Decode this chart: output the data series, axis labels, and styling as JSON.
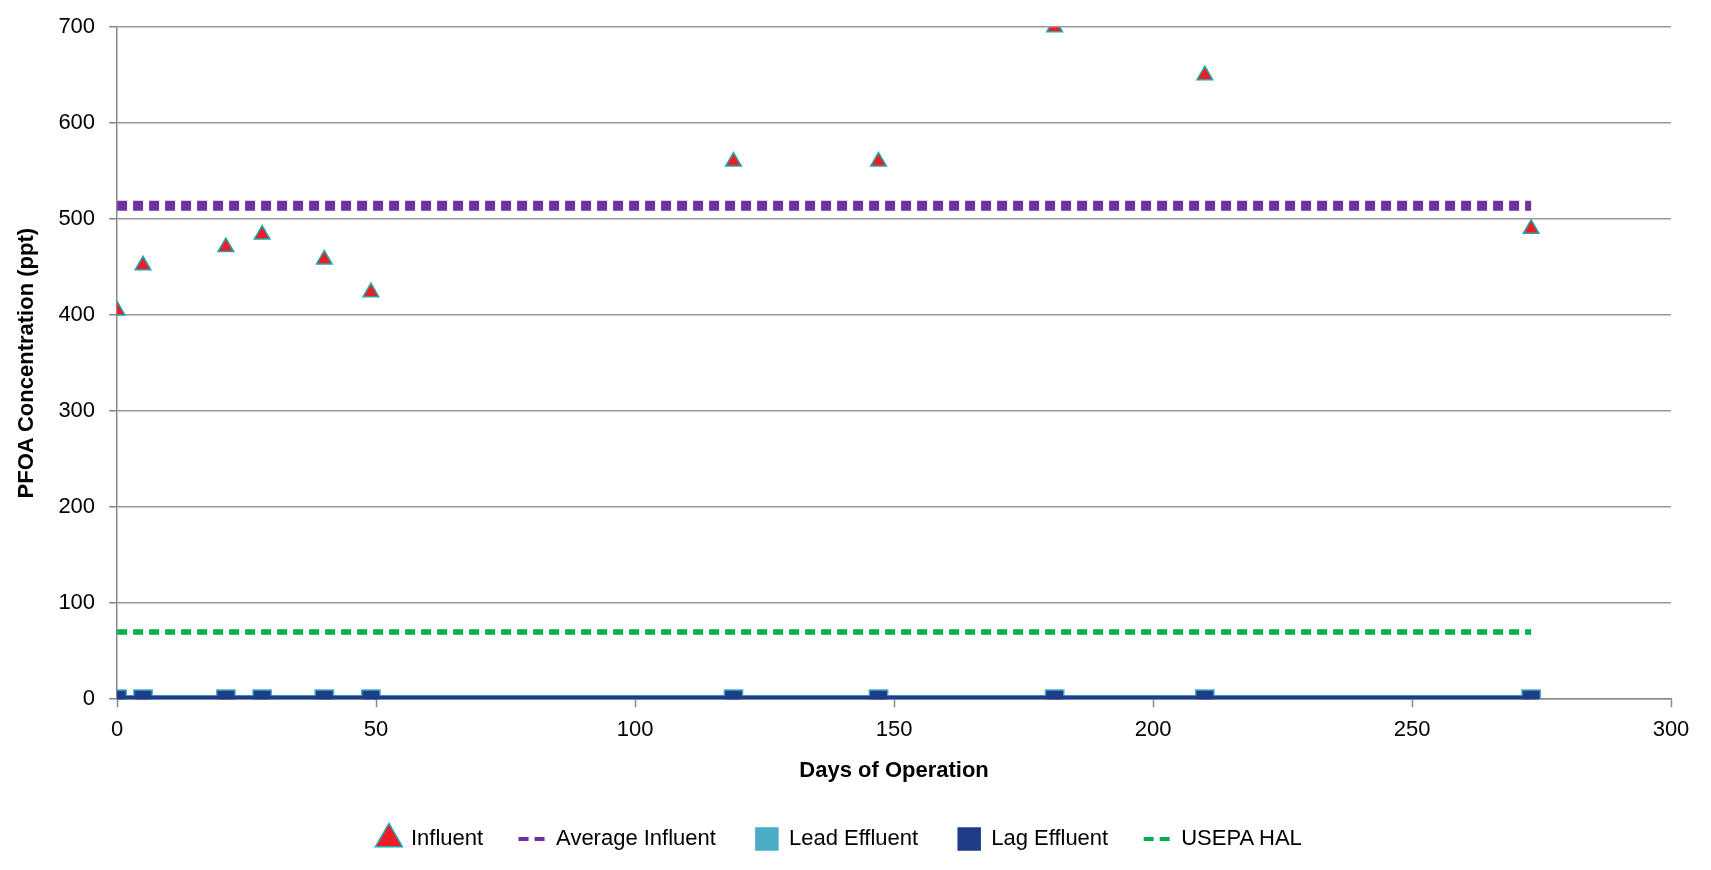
{
  "chart_data": {
    "type": "scatter",
    "xlabel": "Days of Operation",
    "ylabel": "PFOA Concentration (ppt)",
    "xlim": [
      0,
      300
    ],
    "xticks": [
      0,
      50,
      100,
      150,
      200,
      250,
      300
    ],
    "ylim": [
      0,
      700
    ],
    "yticks": [
      0,
      100,
      200,
      300,
      400,
      500,
      600,
      700
    ],
    "grid": "y",
    "legend": "bottom",
    "series": [
      {
        "name": "Influent",
        "type": "scatter",
        "marker": "triangle",
        "color": "#ee1c25",
        "x": [
          0,
          5,
          21,
          28,
          40,
          49,
          119,
          147,
          181,
          210,
          273
        ],
        "values": [
          405,
          452,
          471,
          484,
          458,
          424,
          560,
          560,
          700,
          650,
          490
        ]
      },
      {
        "name": "Average Influent",
        "type": "line",
        "marker": "none",
        "line_style": "dashed",
        "color": "#7030a0",
        "x": [
          0,
          273
        ],
        "values": [
          514,
          514
        ]
      },
      {
        "name": "Lead Effluent",
        "type": "line",
        "marker": "square",
        "line_style": "solid",
        "color": "#4bacc6",
        "x": [
          0,
          5,
          21,
          28,
          40,
          49,
          119,
          147,
          181,
          210,
          273
        ],
        "values": [
          0,
          0,
          0,
          0,
          0,
          0,
          0,
          0,
          0,
          0,
          0
        ]
      },
      {
        "name": "Lag Effluent",
        "type": "line",
        "marker": "square",
        "line_style": "solid",
        "color": "#1f3c88",
        "x": [
          0,
          5,
          21,
          28,
          40,
          49,
          119,
          147,
          181,
          210,
          273
        ],
        "values": [
          0,
          0,
          0,
          0,
          0,
          0,
          0,
          0,
          0,
          0,
          0
        ]
      },
      {
        "name": "USEPA HAL",
        "type": "line",
        "marker": "none",
        "line_style": "dashed",
        "color": "#00b050",
        "x": [
          0,
          273
        ],
        "values": [
          70,
          70
        ]
      }
    ]
  }
}
